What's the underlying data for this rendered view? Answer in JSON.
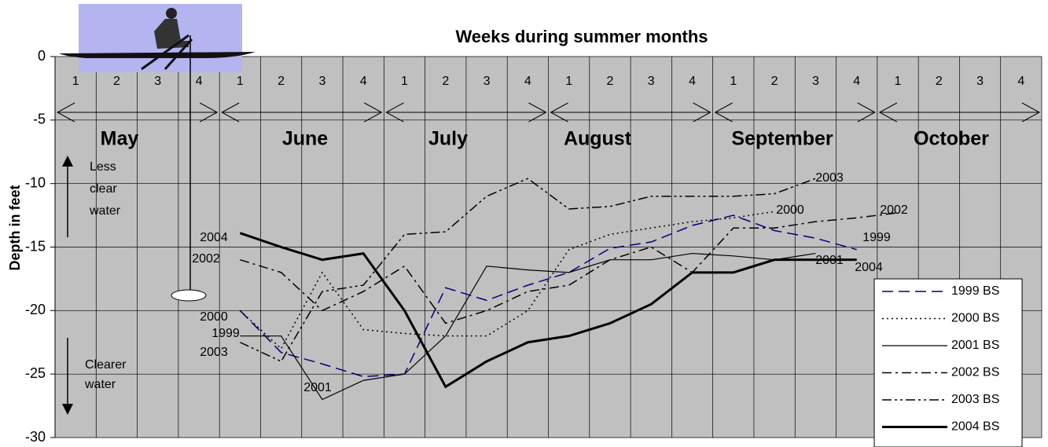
{
  "chart_data": {
    "type": "line",
    "title": "Weeks during summer months",
    "y_label": "Depth in feet",
    "categories": [
      "1",
      "2",
      "3",
      "4",
      "1",
      "2",
      "3",
      "4",
      "1",
      "2",
      "3",
      "4",
      "1",
      "2",
      "3",
      "4",
      "1",
      "2",
      "3",
      "4",
      "1",
      "2",
      "3",
      "4"
    ],
    "months": [
      "May",
      "June",
      "July",
      "August",
      "September",
      "October"
    ],
    "ylim": [
      -30,
      0
    ],
    "yticks": [
      0,
      -5,
      -10,
      -15,
      -20,
      -25,
      -30
    ],
    "grid": true,
    "background": "#c0c0c0",
    "less_clear_label": [
      "Less",
      "clear",
      "water"
    ],
    "clearer_label": [
      "Clearer",
      "water"
    ],
    "start_labels": [
      "2004",
      "2002",
      "2000",
      "1999",
      "2003",
      "2001"
    ],
    "end_labels": [
      "2003",
      "2000",
      "2002",
      "1999",
      "2001",
      "2004"
    ],
    "legend": "bottom-right",
    "series": [
      {
        "name": "1999 BS",
        "color": "#000080",
        "line_style": "dashed",
        "line_width": 1.5,
        "values": [
          null,
          null,
          null,
          null,
          -20,
          -23.3,
          -24.2,
          -25.2,
          -25,
          -18.2,
          -19.2,
          -18,
          -17,
          -15.1,
          -14.6,
          -13.3,
          -12.5,
          -13.7,
          -14.3,
          -15.2,
          null,
          null,
          null,
          null
        ]
      },
      {
        "name": "2000 BS",
        "color": "#000000",
        "line_style": "dotted",
        "line_width": 1.5,
        "values": [
          null,
          null,
          null,
          null,
          -20,
          -23,
          -17,
          -21.5,
          -21.8,
          -22,
          -22,
          -20,
          -15.2,
          -14,
          -13.5,
          -13,
          -12.7,
          -12.2,
          null,
          null,
          null,
          null,
          null,
          null
        ]
      },
      {
        "name": "2001 BS",
        "color": "#000000",
        "line_style": "solid",
        "line_width": 1.2,
        "values": [
          null,
          null,
          null,
          null,
          -22,
          -22,
          -27,
          -25.5,
          -25,
          -22,
          -16.5,
          -16.8,
          -17,
          -16,
          -16,
          -15.5,
          -15.7,
          -16,
          -15.5,
          null,
          null,
          null,
          null,
          null
        ]
      },
      {
        "name": "2002 BS",
        "color": "#000000",
        "line_style": "dashdot",
        "line_width": 1.5,
        "values": [
          null,
          null,
          null,
          null,
          -16,
          -17,
          -20,
          -18.5,
          -16.5,
          -21,
          -20,
          -18.5,
          -18,
          -16,
          -15,
          -17,
          -13.5,
          -13.5,
          -13,
          -12.7,
          -12.3,
          null,
          null,
          null
        ]
      },
      {
        "name": "2003 BS",
        "color": "#000000",
        "line_style": "dashdotdot",
        "line_width": 1.5,
        "values": [
          null,
          null,
          null,
          null,
          -22.5,
          -24,
          -18.5,
          -18,
          -14,
          -13.8,
          -11,
          -9.6,
          -12,
          -11.8,
          -11,
          -11,
          -11,
          -10.8,
          -9.6,
          null,
          null,
          null,
          null,
          null
        ]
      },
      {
        "name": "2004 BS",
        "color": "#000000",
        "line_style": "solid",
        "line_width": 3,
        "values": [
          null,
          null,
          null,
          null,
          -13.9,
          -15,
          -16,
          -15.5,
          -20,
          -26,
          -24,
          -22.5,
          -22,
          -21,
          -19.5,
          -17,
          -17,
          -16,
          -16,
          -16,
          null,
          null,
          null,
          null
        ]
      }
    ]
  }
}
